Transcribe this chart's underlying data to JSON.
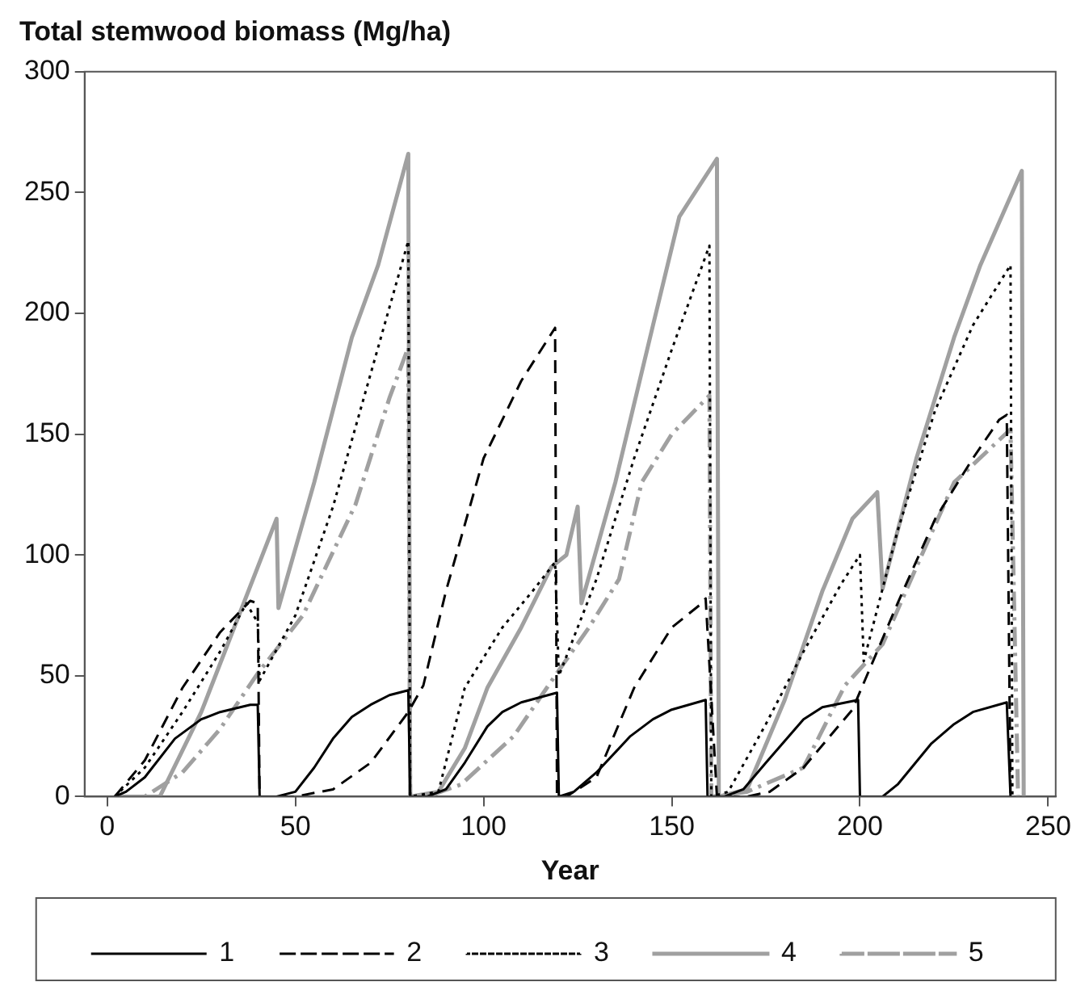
{
  "chart_data": {
    "type": "line",
    "title": "Total stemwood biomass (Mg/ha)",
    "xlabel": "Year",
    "xlim": [
      -6,
      252
    ],
    "xticks": [
      0,
      50,
      100,
      150,
      200,
      250
    ],
    "ylim": [
      0,
      300
    ],
    "yticks": [
      0,
      50,
      100,
      150,
      200,
      250,
      300
    ],
    "grid": false,
    "legend": "bottom",
    "marker": "none",
    "series": [
      {
        "name": "1",
        "color": "#000000",
        "line_style": "solid",
        "x": [
          2,
          5,
          10,
          18,
          25,
          30,
          38,
          40,
          40.5,
          45,
          50,
          55,
          60,
          65,
          70,
          75,
          80,
          80.5,
          85,
          90,
          95,
          101,
          105,
          110,
          119.5,
          120,
          124,
          130,
          139,
          145,
          150,
          159,
          159.5,
          164,
          169,
          175,
          185,
          190,
          199.5,
          200,
          206,
          210,
          219,
          225,
          230,
          239,
          240
        ],
        "values": [
          0,
          2,
          8,
          24,
          32,
          35,
          38,
          38,
          0,
          0,
          2,
          12,
          24,
          33,
          38,
          42,
          44,
          0,
          0,
          3,
          14,
          29,
          35,
          39,
          43,
          0,
          2,
          10,
          25,
          32,
          36,
          40,
          0,
          0,
          3,
          14,
          32,
          37,
          40,
          0,
          0,
          5,
          22,
          30,
          35,
          39,
          0
        ]
      },
      {
        "name": "2",
        "color": "#000000",
        "line_style": "dashed",
        "x": [
          2,
          10,
          20,
          30,
          38,
          40,
          40.5,
          50,
          60,
          70,
          80,
          84,
          90,
          100,
          110,
          119,
          119.5,
          122,
          130,
          140,
          150,
          158,
          159,
          162,
          170,
          176,
          185,
          198,
          210,
          220,
          230,
          237,
          239,
          240
        ],
        "values": [
          0,
          15,
          45,
          68,
          81,
          80,
          0,
          0,
          3,
          14,
          35,
          46,
          85,
          140,
          172,
          194,
          0,
          0,
          8,
          45,
          70,
          80,
          82,
          0,
          0,
          2,
          12,
          36,
          80,
          115,
          140,
          156,
          158,
          0
        ]
      },
      {
        "name": "3",
        "color": "#000000",
        "line_style": "dotted",
        "x": [
          2,
          10,
          20,
          30,
          37,
          40,
          40.5,
          50,
          60,
          70,
          80,
          80.5,
          88,
          95,
          105,
          113,
          119,
          120,
          130,
          140,
          150,
          160,
          160.5,
          165,
          175,
          185,
          195,
          200,
          201,
          210,
          220,
          230,
          240,
          240.5
        ],
        "values": [
          0,
          12,
          35,
          60,
          80,
          72,
          48,
          75,
          120,
          175,
          230,
          0,
          2,
          45,
          70,
          85,
          97,
          50,
          90,
          140,
          185,
          228,
          0,
          2,
          30,
          60,
          88,
          100,
          56,
          110,
          160,
          195,
          220,
          0
        ]
      },
      {
        "name": "4",
        "color": "#a0a0a0",
        "line_style": "solid",
        "x": [
          3,
          14,
          25,
          35,
          45,
          45.5,
          55,
          65,
          72,
          80,
          80.5,
          88,
          95,
          101,
          110,
          118,
          122,
          125,
          126,
          135,
          145,
          152,
          162,
          162.5,
          170,
          180,
          190,
          198,
          204.6,
          206,
          215,
          225,
          232,
          243,
          243.5
        ],
        "values": [
          0,
          0,
          35,
          75,
          115,
          78,
          130,
          190,
          220,
          266,
          0,
          2,
          20,
          45,
          70,
          95,
          100,
          120,
          80,
          130,
          195,
          240,
          264,
          0,
          3,
          40,
          85,
          115,
          126,
          86,
          140,
          190,
          220,
          259,
          0
        ]
      },
      {
        "name": "5",
        "color": "#a0a0a0",
        "line_style": "dashdot",
        "x": [
          3,
          10,
          20,
          30,
          40,
          52,
          66,
          75,
          80,
          80.5,
          85,
          94,
          108,
          119,
          128,
          136,
          142,
          150,
          160,
          160.5,
          170,
          185,
          196,
          206,
          215,
          225,
          240,
          242
        ],
        "values": [
          0,
          0,
          10,
          28,
          51,
          75,
          121,
          165,
          186,
          0,
          0,
          5,
          25,
          50,
          70,
          90,
          130,
          150,
          166,
          0,
          2,
          12,
          46,
          63,
          95,
          130,
          152,
          0
        ]
      }
    ]
  }
}
